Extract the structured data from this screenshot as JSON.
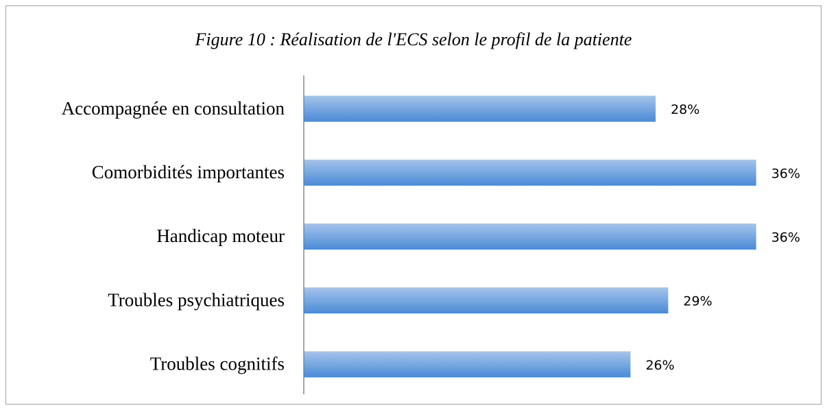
{
  "chart_data": {
    "type": "bar",
    "orientation": "horizontal",
    "title": "Figure 10 : Réalisation de l'ECS selon le profil de la patiente",
    "categories": [
      "Accompagnée en consultation",
      "Comorbidités importantes",
      "Handicap moteur",
      "Troubles psychiatriques",
      "Troubles cognitifs"
    ],
    "values": [
      28,
      36,
      36,
      29,
      26
    ],
    "value_labels": [
      "28%",
      "36%",
      "36%",
      "29%",
      "26%"
    ],
    "color": "#4a8ad6",
    "xlim": [
      0,
      40
    ]
  }
}
